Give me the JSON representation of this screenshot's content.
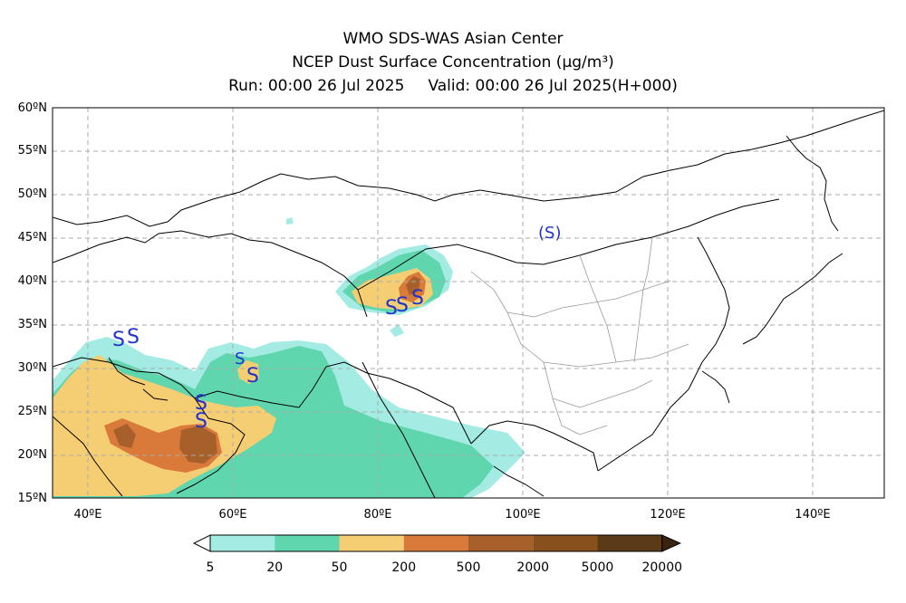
{
  "title": {
    "line1": "WMO SDS-WAS Asian Center",
    "line2": "NCEP Dust Surface Concentration (μg/m³)",
    "run": "Run: 00:00 26 Jul 2025",
    "valid": "Valid: 00:00 26 Jul 2025(H+000)"
  },
  "map": {
    "lon_range": [
      35,
      150
    ],
    "lat_range": [
      15,
      60
    ],
    "lat_ticks": [
      "15ºN",
      "20ºN",
      "25ºN",
      "30ºN",
      "35ºN",
      "40ºN",
      "45ºN",
      "50ºN",
      "55ºN",
      "60ºN"
    ],
    "lon_ticks": [
      "40ºE",
      "60ºE",
      "80ºE",
      "100ºE",
      "120ºE",
      "140ºE"
    ],
    "grid": true,
    "grid_style": "dashed"
  },
  "colorbar": {
    "labels": [
      "5",
      "20",
      "50",
      "200",
      "500",
      "2000",
      "5000",
      "20000"
    ],
    "colors": [
      "#a3ebe3",
      "#5fd6ad",
      "#f5cd73",
      "#d97a3a",
      "#a8602a",
      "#87511d",
      "#5a3a17",
      "#3a2410"
    ]
  },
  "markers": {
    "symbol": "S",
    "color": "#2233cc"
  }
}
